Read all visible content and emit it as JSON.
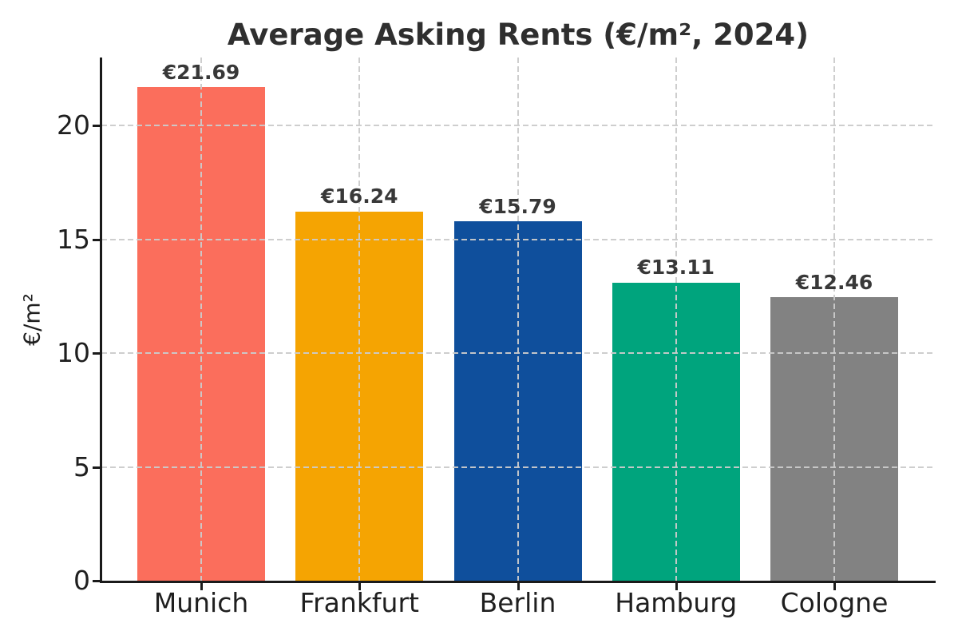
{
  "chart_data": {
    "type": "bar",
    "title": "Average Asking Rents (€/m², 2024)",
    "xlabel": "",
    "ylabel": "€/m²",
    "categories": [
      "Munich",
      "Frankfurt",
      "Berlin",
      "Hamburg",
      "Cologne"
    ],
    "values": [
      21.69,
      16.24,
      15.79,
      13.11,
      12.46
    ],
    "bar_labels": [
      "€21.69",
      "€16.24",
      "€15.79",
      "€13.11",
      "€12.46"
    ],
    "bar_colors": [
      "#fb6e5c",
      "#f5a402",
      "#0f4f9c",
      "#00a47d",
      "#828282"
    ],
    "ylim": [
      0,
      23
    ],
    "yticks": [
      0,
      5,
      10,
      15,
      20
    ],
    "grid": true,
    "grid_style": "dashed",
    "grid_color": "#cbcbcb",
    "grid_above_bars": true,
    "legend": "none",
    "background": "#ffffff",
    "axis_color": "#1a1a1a",
    "text_color": "#1f1f1f",
    "title_color": "#2f2f2f",
    "bar_label_color": "#383838"
  }
}
